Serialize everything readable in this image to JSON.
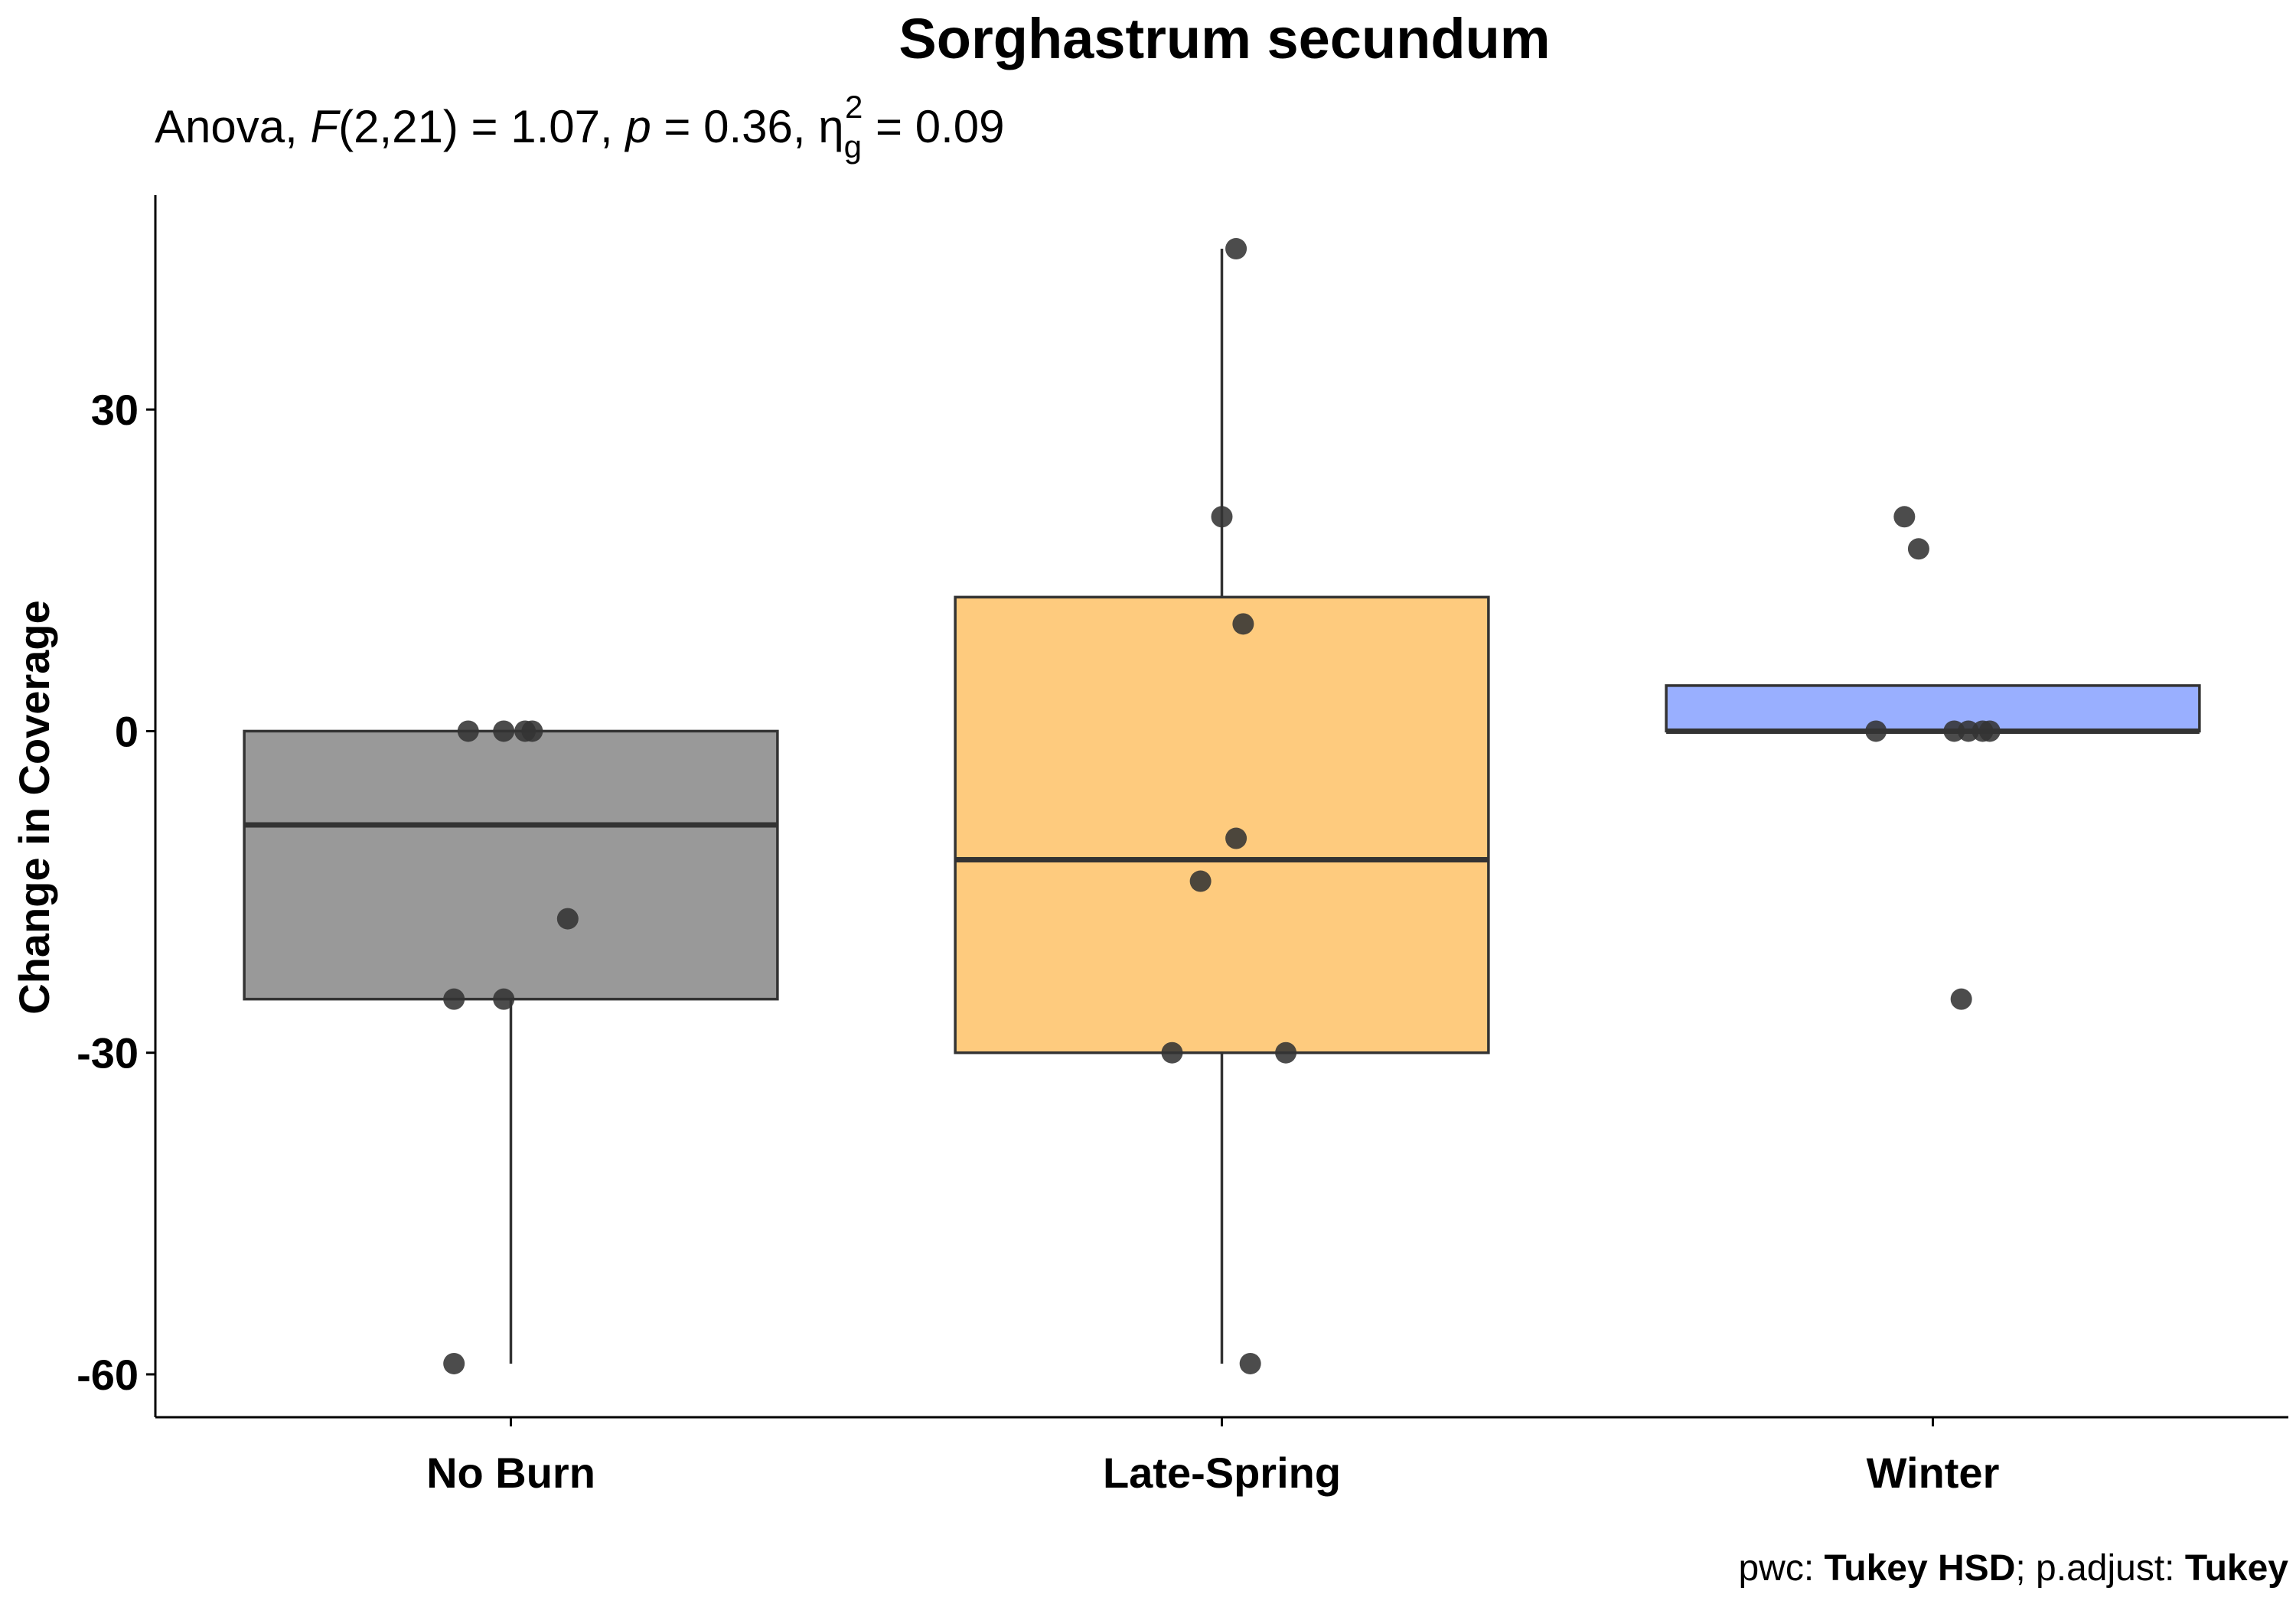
{
  "chart_data": {
    "type": "box",
    "title": "Sorghastrum secundum",
    "subtitle": {
      "prefix": "Anova, ",
      "f_symbol": "F",
      "f_df": "(2,21)",
      "f_value": " = 1.07, ",
      "p_symbol": "p",
      "p_value": " = 0.36, ",
      "eta_symbol": "η",
      "eta_sub": "g",
      "eta_sup": "2",
      "eta_value": " = 0.09"
    },
    "ylabel": "Change in Coverage",
    "xlabel": "",
    "ylim": [
      -64,
      50
    ],
    "yticks": [
      -60,
      -30,
      0,
      30
    ],
    "ytick_labels": [
      "-60",
      "-30",
      "0",
      "30"
    ],
    "categories": [
      "No Burn",
      "Late-Spring",
      "Winter"
    ],
    "boxes": [
      {
        "name": "No Burn",
        "color": "#999999",
        "q1": -25,
        "median": -8.75,
        "q3": 0,
        "whisker_low": -59,
        "whisker_high": 0
      },
      {
        "name": "Late-Spring",
        "color": "#FECB7E",
        "q1": -30,
        "median": -12,
        "q3": 12.5,
        "whisker_low": -59,
        "whisker_high": 45
      },
      {
        "name": "Winter",
        "color": "#99AFFF",
        "q1": 0,
        "median": 0,
        "q3": 4.25,
        "whisker_low": 0,
        "whisker_high": 4.25
      }
    ],
    "points": [
      {
        "category": "No Burn",
        "jitter": -0.06,
        "value": 0
      },
      {
        "category": "No Burn",
        "jitter": -0.01,
        "value": 0
      },
      {
        "category": "No Burn",
        "jitter": 0.02,
        "value": 0
      },
      {
        "category": "No Burn",
        "jitter": 0.03,
        "value": 0
      },
      {
        "category": "No Burn",
        "jitter": 0.08,
        "value": -17.5
      },
      {
        "category": "No Burn",
        "jitter": -0.08,
        "value": -25
      },
      {
        "category": "No Burn",
        "jitter": -0.01,
        "value": -25
      },
      {
        "category": "No Burn",
        "jitter": -0.08,
        "value": -59
      },
      {
        "category": "Late-Spring",
        "jitter": 0.02,
        "value": 45
      },
      {
        "category": "Late-Spring",
        "jitter": 0.0,
        "value": 20
      },
      {
        "category": "Late-Spring",
        "jitter": 0.03,
        "value": 10
      },
      {
        "category": "Late-Spring",
        "jitter": 0.02,
        "value": -10
      },
      {
        "category": "Late-Spring",
        "jitter": -0.03,
        "value": -14
      },
      {
        "category": "Late-Spring",
        "jitter": -0.07,
        "value": -30
      },
      {
        "category": "Late-Spring",
        "jitter": 0.09,
        "value": -30
      },
      {
        "category": "Late-Spring",
        "jitter": 0.04,
        "value": -59
      },
      {
        "category": "Winter",
        "jitter": -0.04,
        "value": 20
      },
      {
        "category": "Winter",
        "jitter": -0.02,
        "value": 17
      },
      {
        "category": "Winter",
        "jitter": -0.08,
        "value": 0
      },
      {
        "category": "Winter",
        "jitter": 0.03,
        "value": 0
      },
      {
        "category": "Winter",
        "jitter": 0.05,
        "value": 0
      },
      {
        "category": "Winter",
        "jitter": 0.07,
        "value": 0
      },
      {
        "category": "Winter",
        "jitter": 0.08,
        "value": 0
      },
      {
        "category": "Winter",
        "jitter": 0.04,
        "value": -25
      }
    ],
    "point_color": "#333333",
    "grid": false,
    "legend": "none",
    "caption": {
      "pwc_label": "pwc: ",
      "pwc_method": "Tukey HSD",
      "adjust_label": "; p.adjust: ",
      "adjust_method": "Tukey"
    }
  }
}
